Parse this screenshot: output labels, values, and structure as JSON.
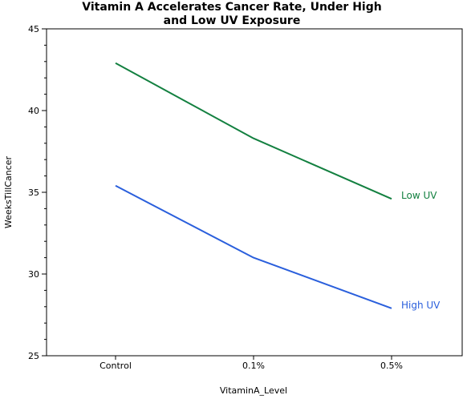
{
  "chart_data": {
    "type": "line",
    "title_line1": "Vitamin A Accelerates Cancer Rate, Under High",
    "title_line2": "and Low UV Exposure",
    "xlabel": "VitaminA_Level",
    "ylabel": "WeeksTillCancer",
    "categories": [
      "Control",
      "0.1%",
      "0.5%"
    ],
    "ylim": [
      25,
      45
    ],
    "yticks": [
      25,
      30,
      35,
      40,
      45
    ],
    "grid": false,
    "series": [
      {
        "name": "Low UV",
        "color": "#138040",
        "values": [
          42.9,
          38.3,
          34.6
        ]
      },
      {
        "name": "High UV",
        "color": "#2a5fdc",
        "values": [
          35.4,
          31.0,
          27.9
        ]
      }
    ]
  }
}
